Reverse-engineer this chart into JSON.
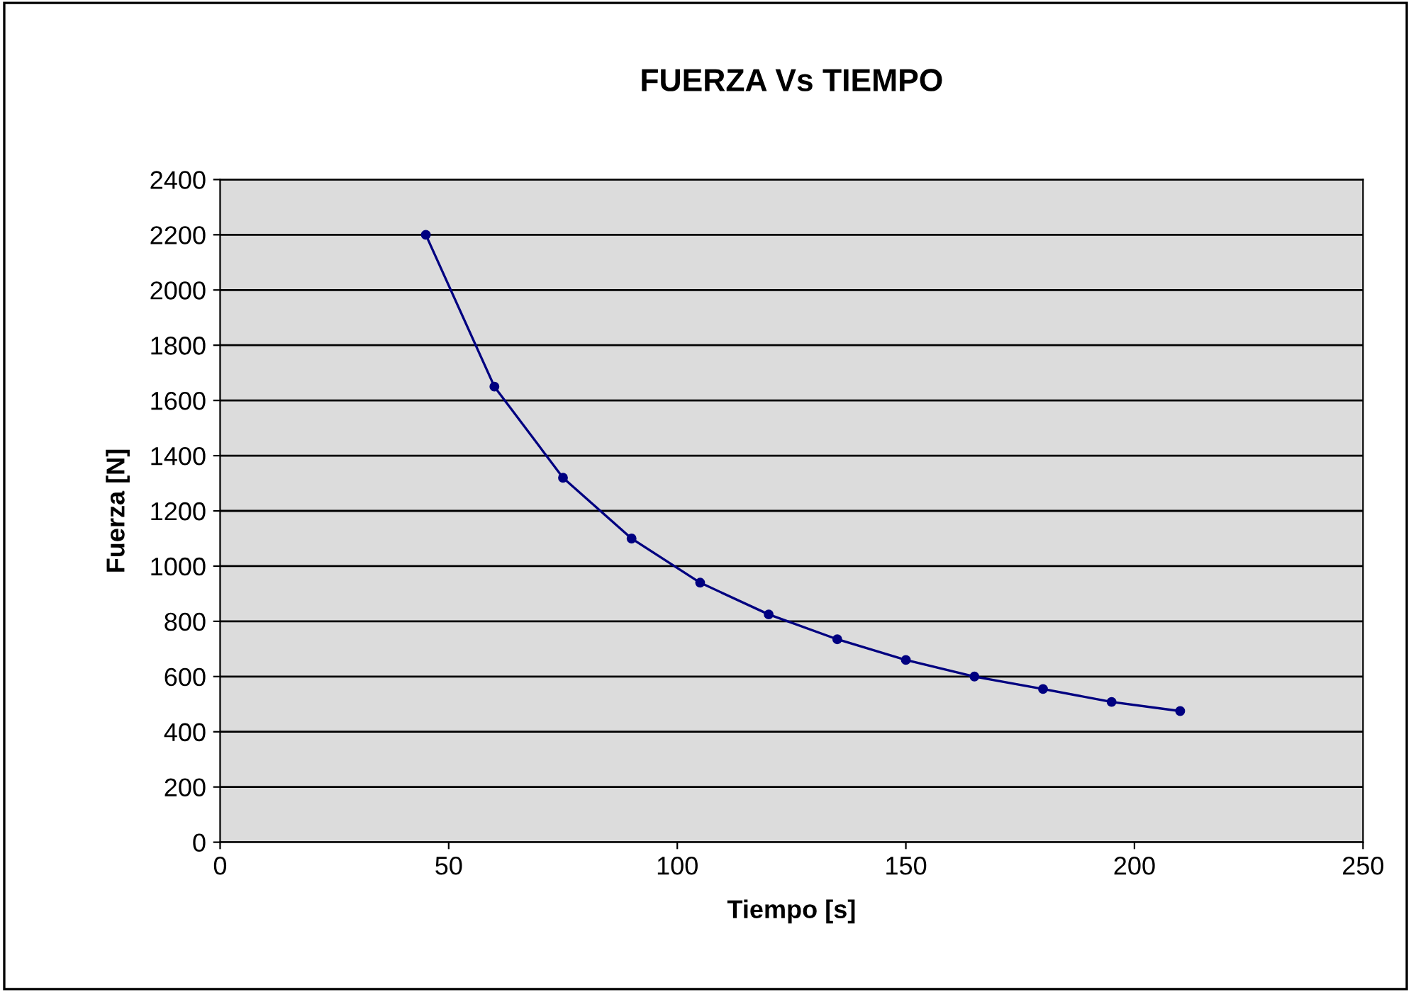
{
  "chart_data": {
    "type": "line",
    "title": "FUERZA Vs TIEMPO",
    "xlabel": "Tiempo [s]",
    "ylabel": "Fuerza [N]",
    "x": [
      45,
      60,
      75,
      90,
      105,
      120,
      135,
      150,
      165,
      180,
      195,
      210
    ],
    "series": [
      {
        "color": "#000080",
        "values": [
          2200,
          1650,
          1320,
          1100,
          940,
          825,
          735,
          660,
          600,
          555,
          508,
          475
        ]
      }
    ],
    "xlim": [
      0,
      250
    ],
    "xticks": [
      0,
      50,
      100,
      150,
      200,
      250
    ],
    "ylim": [
      0,
      2400
    ],
    "yticks": [
      0,
      200,
      400,
      600,
      800,
      1000,
      1200,
      1400,
      1600,
      1800,
      2000,
      2200,
      2400
    ],
    "grid": "y",
    "marker": "circle",
    "line_style": "solid",
    "legend": false
  }
}
